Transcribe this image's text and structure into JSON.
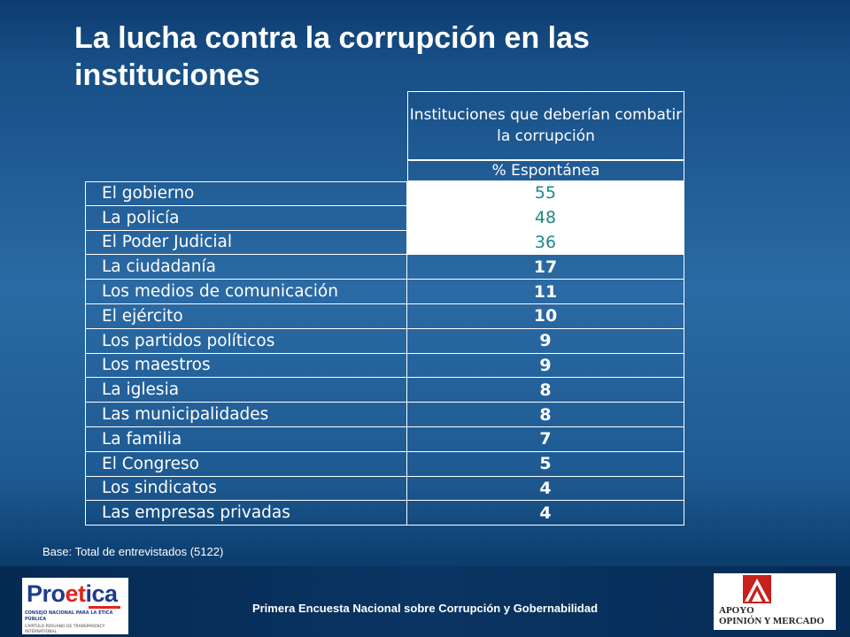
{
  "title": "La lucha contra la corrupción en las instituciones",
  "table_header": "Instituciones que deberían combatir la corrupción",
  "column_header": "% Espontánea",
  "highlight_color": "#1b8a86",
  "chart_data": {
    "type": "table",
    "columns": [
      "",
      "% Espontánea"
    ],
    "categories": [
      "El gobierno",
      "La policía",
      "El Poder Judicial",
      "La ciudadanía",
      "Los medios de comunicación",
      "El ejército",
      "Los partidos políticos",
      "Los maestros",
      "La iglesia",
      "Las municipalidades",
      "La familia",
      "El Congreso",
      "Los sindicatos",
      "Las empresas privadas"
    ],
    "values": [
      55,
      48,
      36,
      17,
      11,
      10,
      9,
      9,
      8,
      8,
      7,
      5,
      4,
      4
    ],
    "highlighted_rows": 3
  },
  "base_note": "Base: Total de entrevistados (5122)",
  "footer": "Primera Encuesta Nacional sobre Corrupción y Gobernabilidad",
  "logo_left": {
    "text_a": "Pro",
    "text_b": "et",
    "text_c": "ica",
    "tagline": "CONSEJO NACIONAL PARA LA ÉTICA PÚBLICA",
    "sub": "CAPÍTULO PERUANO DE TRANSPARENCY INTERNATIONAL"
  },
  "logo_right": {
    "line1": "APOYO",
    "line2": "OPINIÓN Y MERCADO"
  }
}
